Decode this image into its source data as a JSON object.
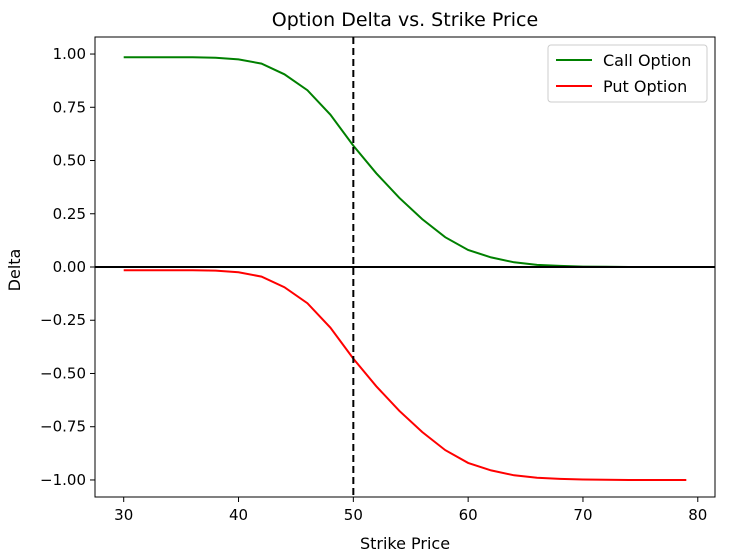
{
  "chart_data": {
    "type": "line",
    "title": "Option Delta vs. Strike Price",
    "xlabel": "Strike Price",
    "ylabel": "Delta",
    "xlim": [
      27.5,
      81.5
    ],
    "ylim": [
      -1.08,
      1.08
    ],
    "xticks": [
      30,
      40,
      50,
      60,
      70,
      80
    ],
    "yticks": [
      1.0,
      0.75,
      0.5,
      0.25,
      0.0,
      -0.25,
      -0.5,
      -0.75,
      -1.0
    ],
    "ytick_labels": [
      "1.00",
      "0.75",
      "0.50",
      "0.25",
      "0.00",
      "−0.25",
      "−0.50",
      "−0.75",
      "−1.00"
    ],
    "legend_position": "upper right",
    "reference_lines": {
      "horizontal_y": 0.0,
      "vertical_x": 50
    },
    "x": [
      30,
      32,
      34,
      36,
      38,
      40,
      42,
      44,
      46,
      48,
      50,
      52,
      54,
      56,
      58,
      60,
      62,
      64,
      66,
      68,
      70,
      72,
      74,
      76,
      78,
      79
    ],
    "series": [
      {
        "name": "Call Option",
        "color": "#008000",
        "values": [
          0.985,
          0.985,
          0.985,
          0.985,
          0.983,
          0.975,
          0.955,
          0.905,
          0.83,
          0.715,
          0.57,
          0.44,
          0.325,
          0.225,
          0.14,
          0.08,
          0.045,
          0.022,
          0.01,
          0.005,
          0.002,
          0.001,
          0.0,
          0.0,
          0.0,
          0.0
        ]
      },
      {
        "name": "Put Option",
        "color": "#ff0000",
        "values": [
          -0.015,
          -0.015,
          -0.015,
          -0.015,
          -0.017,
          -0.025,
          -0.045,
          -0.095,
          -0.17,
          -0.285,
          -0.43,
          -0.56,
          -0.675,
          -0.775,
          -0.86,
          -0.92,
          -0.955,
          -0.978,
          -0.99,
          -0.995,
          -0.998,
          -0.999,
          -1.0,
          -1.0,
          -1.0,
          -1.0
        ]
      }
    ]
  }
}
